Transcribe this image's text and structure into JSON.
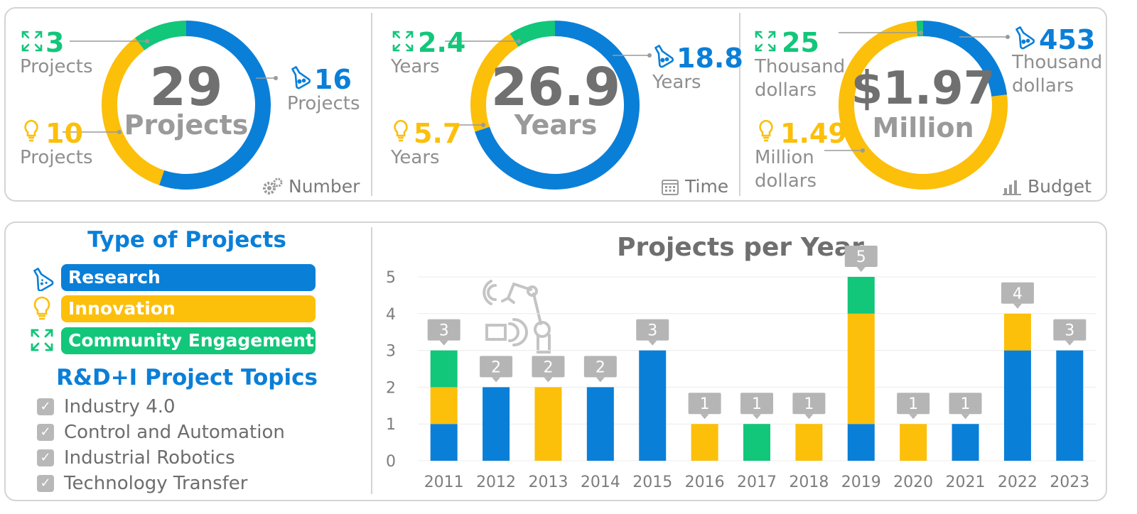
{
  "colors": {
    "research": "#0a7fd8",
    "innovation": "#fcbf0a",
    "community": "#12c67a",
    "grey": "#8a8a8a"
  },
  "panels": [
    {
      "id": "number",
      "center_value": "29",
      "center_unit": "Projects",
      "caption": "Number",
      "caption_icon": "gears-icon",
      "community": {
        "value": "3",
        "unit": "Projects",
        "share": 3
      },
      "innovation": {
        "value": "10",
        "unit": "Projects",
        "share": 10
      },
      "research": {
        "value": "16",
        "unit": "Projects",
        "share": 16
      }
    },
    {
      "id": "time",
      "center_value": "26.9",
      "center_unit": "Years",
      "caption": "Time",
      "caption_icon": "calendar-icon",
      "community": {
        "value": "2.4",
        "unit": "Years",
        "share": 2.4
      },
      "innovation": {
        "value": "5.7",
        "unit": "Years",
        "share": 5.7
      },
      "research": {
        "value": "18.8",
        "unit": "Years",
        "share": 18.8
      }
    },
    {
      "id": "budget",
      "center_value": "$1.97",
      "center_unit": "Million",
      "caption": "Budget",
      "caption_icon": "bar-chart-icon",
      "community": {
        "value": "25",
        "unit1": "Thousand",
        "unit2": "dollars",
        "share": 0.025
      },
      "innovation": {
        "value": "1.49",
        "unit1": "Million",
        "unit2": "dollars",
        "share": 1.49
      },
      "research": {
        "value": "453",
        "unit1": "Thousand",
        "unit2": "dollars",
        "share": 0.453
      }
    }
  ],
  "legend": {
    "title": "Type of Projects",
    "items": [
      {
        "label": "Research",
        "icon": "flask-icon"
      },
      {
        "label": "Innovation",
        "icon": "lightbulb-icon"
      },
      {
        "label": "Community Engagement",
        "icon": "expand-arrows-icon"
      }
    ]
  },
  "topics": {
    "title": "R&D+I Project Topics",
    "items": [
      "Industry 4.0",
      "Control and Automation",
      "Industrial Robotics",
      "Technology Transfer"
    ]
  },
  "chart_data": {
    "type": "bar",
    "stacked": true,
    "title": "Projects per Year",
    "xlabel": "",
    "ylabel": "",
    "ylim": [
      0,
      5
    ],
    "yticks": [
      0,
      1,
      2,
      3,
      4,
      5
    ],
    "grid": true,
    "categories": [
      "2011",
      "2012",
      "2013",
      "2014",
      "2015",
      "2016",
      "2017",
      "2018",
      "2019",
      "2020",
      "2021",
      "2022",
      "2023"
    ],
    "series": [
      {
        "name": "Research",
        "color": "#0a7fd8",
        "values": [
          1,
          2,
          0,
          2,
          3,
          0,
          0,
          0,
          1,
          0,
          1,
          3,
          3
        ]
      },
      {
        "name": "Innovation",
        "color": "#fcbf0a",
        "values": [
          1,
          0,
          2,
          0,
          0,
          1,
          0,
          1,
          3,
          1,
          0,
          1,
          0
        ]
      },
      {
        "name": "Community Engagement",
        "color": "#12c67a",
        "values": [
          1,
          0,
          0,
          0,
          0,
          0,
          1,
          0,
          1,
          0,
          0,
          0,
          0
        ]
      }
    ],
    "totals": [
      3,
      2,
      2,
      2,
      3,
      1,
      1,
      1,
      5,
      1,
      1,
      4,
      3
    ]
  }
}
